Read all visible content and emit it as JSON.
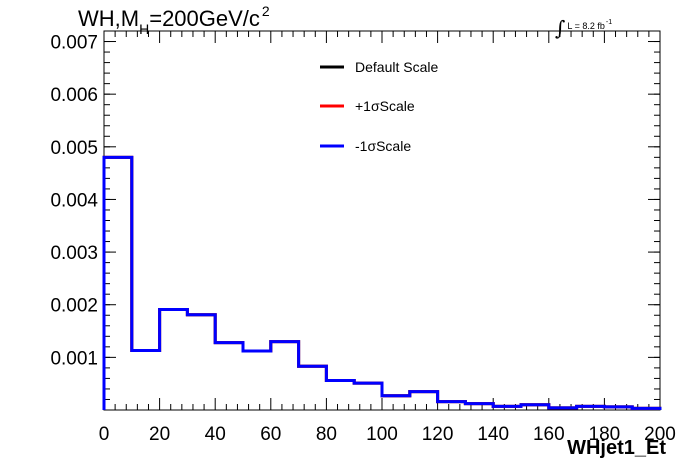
{
  "title": {
    "prefix": "WH,M",
    "subscript": "H",
    "value": "=200GeV/c",
    "superscript": "2"
  },
  "luminosity": {
    "symbol": "∫",
    "text": "L = 8.2 fb",
    "exponent": "-1"
  },
  "chart_data": {
    "type": "histogram",
    "xlabel": "WHjet1_Et",
    "ylabel": "",
    "xlim": [
      0,
      200
    ],
    "ylim": [
      0,
      0.0072
    ],
    "x_ticks": [
      0,
      20,
      40,
      60,
      80,
      100,
      120,
      140,
      160,
      180,
      200
    ],
    "x_tick_labels": [
      "0",
      "20",
      "40",
      "60",
      "80",
      "100",
      "120",
      "140",
      "160",
      "180",
      "200"
    ],
    "y_ticks": [
      0.001,
      0.002,
      0.003,
      0.004,
      0.005,
      0.006,
      0.007
    ],
    "y_tick_labels": [
      "0.001",
      "0.002",
      "0.003",
      "0.004",
      "0.005",
      "0.006",
      "0.007"
    ],
    "bin_edges": [
      0,
      10,
      20,
      30,
      40,
      50,
      60,
      70,
      80,
      90,
      100,
      110,
      120,
      130,
      140,
      150,
      160,
      170,
      180,
      190,
      200
    ],
    "series": [
      {
        "name": "Default Scale",
        "color": "#000000",
        "values": [
          0.0048,
          0.00113,
          0.00191,
          0.00181,
          0.00128,
          0.00112,
          0.0013,
          0.00083,
          0.00056,
          0.00051,
          0.00027,
          0.00035,
          0.00016,
          0.00012,
          7e-05,
          0.0001,
          4e-05,
          7e-05,
          6e-05,
          3e-05
        ]
      },
      {
        "name": "+1σScale",
        "color": "#ff0000",
        "values": [
          0.0048,
          0.00113,
          0.00191,
          0.00181,
          0.00128,
          0.00112,
          0.0013,
          0.00083,
          0.00056,
          0.00051,
          0.00027,
          0.00035,
          0.00016,
          0.00012,
          7e-05,
          0.0001,
          4e-05,
          7e-05,
          6e-05,
          3e-05
        ]
      },
      {
        "name": "-1σScale",
        "color": "#0000ff",
        "values": [
          0.0048,
          0.00113,
          0.00191,
          0.00181,
          0.00128,
          0.00112,
          0.0013,
          0.00083,
          0.00056,
          0.00051,
          0.00027,
          0.00035,
          0.00016,
          0.00012,
          7e-05,
          0.0001,
          4e-05,
          7e-05,
          6e-05,
          3e-05
        ]
      }
    ],
    "legend_placement": "top-center",
    "grid": false
  }
}
